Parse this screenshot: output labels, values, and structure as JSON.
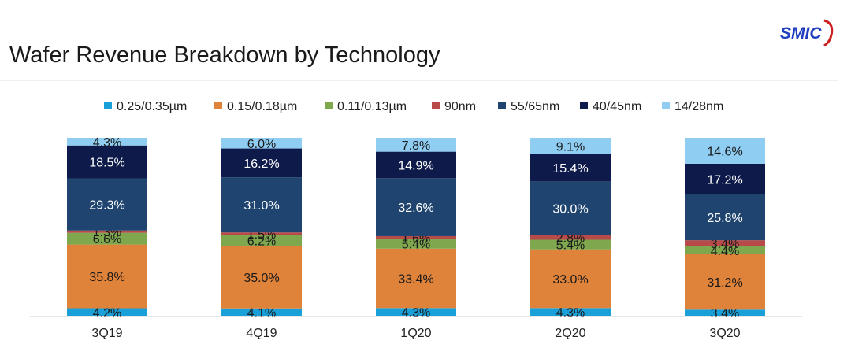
{
  "page": {
    "title": "Wafer Revenue Breakdown by Technology",
    "logo_text": "SMIC"
  },
  "colors": {
    "0.25/0.35µm": "#1aa0d8",
    "0.15/0.18µm": "#e0833a",
    "0.11/0.13µm": "#7ea74e",
    "90nm": "#b84a4a",
    "55/65nm": "#1f4470",
    "40/45nm": "#0e1a4a",
    "14/28nm": "#8fcdf3",
    "logo": "#1f3fbf"
  },
  "chart_data": {
    "type": "bar",
    "stacked": true,
    "normalized_percent": true,
    "title": "Wafer Revenue Breakdown by Technology",
    "xlabel": "",
    "ylabel": "",
    "ylim": [
      0,
      100
    ],
    "grid": false,
    "legend_position": "top",
    "categories": [
      "3Q19",
      "4Q19",
      "1Q20",
      "2Q20",
      "3Q20"
    ],
    "series": [
      {
        "name": "0.25/0.35µm",
        "values": [
          4.2,
          4.1,
          4.3,
          4.3,
          3.4
        ],
        "labels": [
          "4.2%",
          "4.1%",
          "4.3%",
          "4.3%",
          "3.4%"
        ]
      },
      {
        "name": "0.15/0.18µm",
        "values": [
          35.8,
          35.0,
          33.4,
          33.0,
          31.2
        ],
        "labels": [
          "35.8%",
          "35.0%",
          "33.4%",
          "33.0%",
          "31.2%"
        ]
      },
      {
        "name": "0.11/0.13µm",
        "values": [
          6.6,
          6.2,
          5.4,
          5.4,
          4.4
        ],
        "labels": [
          "6.6%",
          "6.2%",
          "5.4%",
          "5.4%",
          "4.4%"
        ]
      },
      {
        "name": "90nm",
        "values": [
          1.3,
          1.5,
          1.6,
          2.8,
          3.4
        ],
        "labels": [
          "1.3%",
          "1.5%",
          "1.6%",
          "2.8%",
          "3.4%"
        ]
      },
      {
        "name": "55/65nm",
        "values": [
          29.3,
          31.0,
          32.6,
          30.0,
          25.8
        ],
        "labels": [
          "29.3%",
          "31.0%",
          "32.6%",
          "30.0%",
          "25.8%"
        ]
      },
      {
        "name": "40/45nm",
        "values": [
          18.5,
          16.2,
          14.9,
          15.4,
          17.2
        ],
        "labels": [
          "18.5%",
          "16.2%",
          "14.9%",
          "15.4%",
          "17.2%"
        ]
      },
      {
        "name": "14/28nm",
        "values": [
          4.3,
          6.0,
          7.8,
          9.1,
          14.6
        ],
        "labels": [
          "4.3%",
          "6.0%",
          "7.8%",
          "9.1%",
          "14.6%"
        ]
      }
    ]
  }
}
